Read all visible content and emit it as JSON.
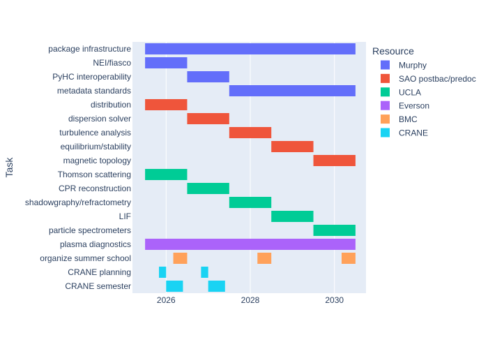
{
  "chart_data": {
    "type": "gantt",
    "ylabel": "Task",
    "xlabel": "",
    "xlim": [
      2025.2,
      2030.75
    ],
    "x_ticks": [
      2026,
      2028,
      2030
    ],
    "tasks": [
      "package infrastructure",
      "NEI/fiasco",
      "PyHC interoperability",
      "metadata standards",
      "distribution",
      "dispersion solver",
      "turbulence analysis",
      "equilibrium/stability",
      "magnetic topology",
      "Thomson scattering",
      "CPR reconstruction",
      "shadowgraphy/refractometry",
      "LIF",
      "particle spectrometers",
      "plasma diagnostics",
      "organize summer school",
      "CRANE planning",
      "CRANE semester"
    ],
    "legend": {
      "title": "Resource",
      "position": "top-right",
      "entries": [
        {
          "name": "Murphy",
          "color": "#636efa"
        },
        {
          "name": "SAO postbac/predoc",
          "color": "#EF553B"
        },
        {
          "name": "UCLA",
          "color": "#00cc96"
        },
        {
          "name": "Everson",
          "color": "#ab63fa"
        },
        {
          "name": "BMC",
          "color": "#FFA15A"
        },
        {
          "name": "CRANE",
          "color": "#19d3f3"
        }
      ]
    },
    "bars": [
      {
        "task": "package infrastructure",
        "resource": "Murphy",
        "start": 2025.5,
        "end": 2030.5
      },
      {
        "task": "NEI/fiasco",
        "resource": "Murphy",
        "start": 2025.5,
        "end": 2026.5
      },
      {
        "task": "PyHC interoperability",
        "resource": "Murphy",
        "start": 2026.5,
        "end": 2027.5
      },
      {
        "task": "metadata standards",
        "resource": "Murphy",
        "start": 2027.5,
        "end": 2030.5
      },
      {
        "task": "distribution",
        "resource": "SAO postbac/predoc",
        "start": 2025.5,
        "end": 2026.5
      },
      {
        "task": "dispersion solver",
        "resource": "SAO postbac/predoc",
        "start": 2026.5,
        "end": 2027.5
      },
      {
        "task": "turbulence analysis",
        "resource": "SAO postbac/predoc",
        "start": 2027.5,
        "end": 2028.5
      },
      {
        "task": "equilibrium/stability",
        "resource": "SAO postbac/predoc",
        "start": 2028.5,
        "end": 2029.5
      },
      {
        "task": "magnetic topology",
        "resource": "SAO postbac/predoc",
        "start": 2029.5,
        "end": 2030.5
      },
      {
        "task": "Thomson scattering",
        "resource": "UCLA",
        "start": 2025.5,
        "end": 2026.5
      },
      {
        "task": "CPR reconstruction",
        "resource": "UCLA",
        "start": 2026.5,
        "end": 2027.5
      },
      {
        "task": "shadowgraphy/refractometry",
        "resource": "UCLA",
        "start": 2027.5,
        "end": 2028.5
      },
      {
        "task": "LIF",
        "resource": "UCLA",
        "start": 2028.5,
        "end": 2029.5
      },
      {
        "task": "particle spectrometers",
        "resource": "UCLA",
        "start": 2029.5,
        "end": 2030.5
      },
      {
        "task": "plasma diagnostics",
        "resource": "Everson",
        "start": 2025.5,
        "end": 2030.5
      },
      {
        "task": "organize summer school",
        "resource": "BMC",
        "start": 2026.17,
        "end": 2026.5
      },
      {
        "task": "organize summer school",
        "resource": "BMC",
        "start": 2028.17,
        "end": 2028.5
      },
      {
        "task": "organize summer school",
        "resource": "BMC",
        "start": 2030.17,
        "end": 2030.5
      },
      {
        "task": "CRANE planning",
        "resource": "CRANE",
        "start": 2025.83,
        "end": 2026.0
      },
      {
        "task": "CRANE planning",
        "resource": "CRANE",
        "start": 2026.83,
        "end": 2027.0
      },
      {
        "task": "CRANE semester",
        "resource": "CRANE",
        "start": 2026.0,
        "end": 2026.4
      },
      {
        "task": "CRANE semester",
        "resource": "CRANE",
        "start": 2027.0,
        "end": 2027.4
      }
    ],
    "grid": true
  }
}
